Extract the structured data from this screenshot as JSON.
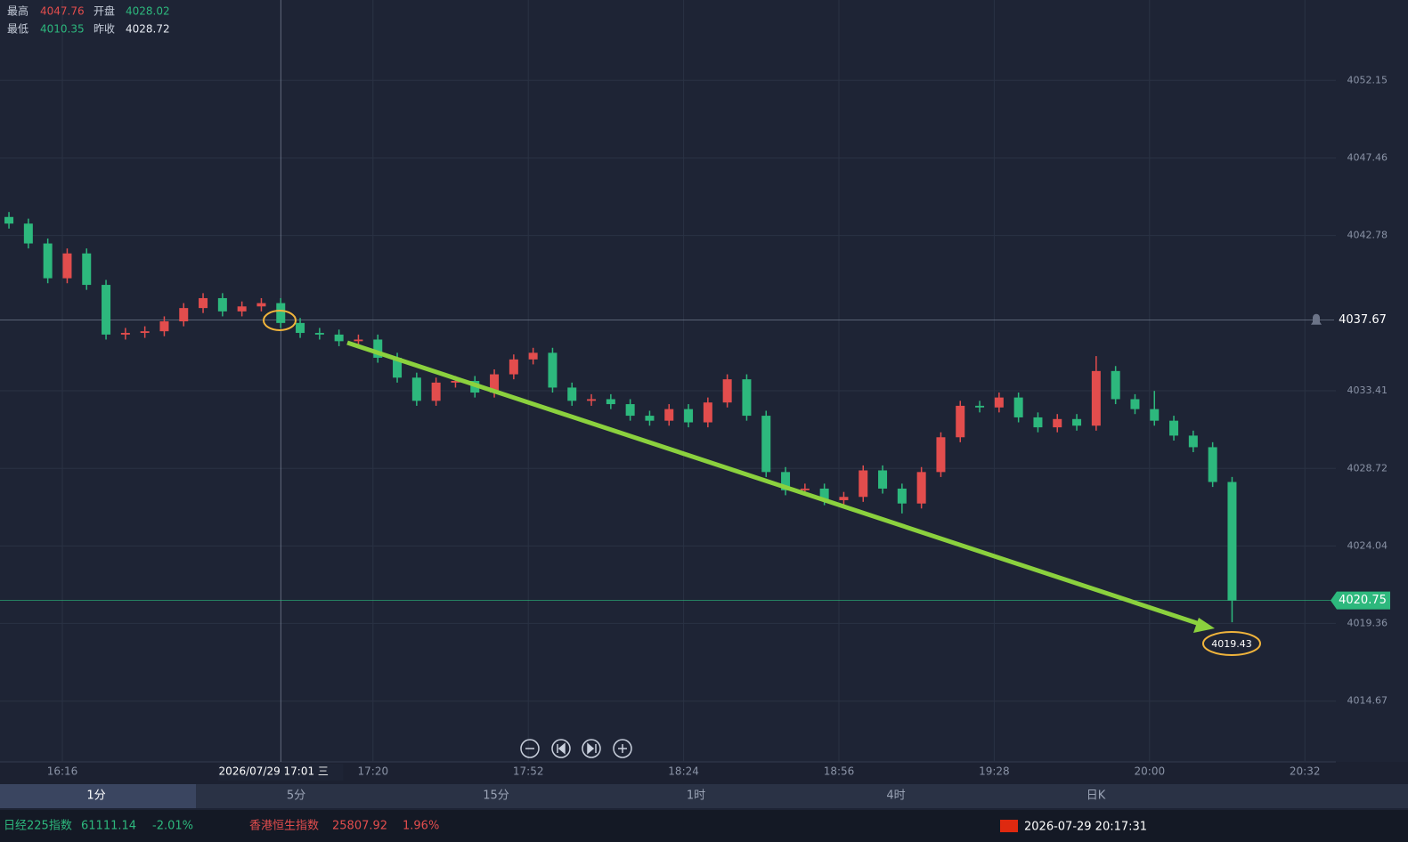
{
  "quote": {
    "high_label": "最高",
    "high": 4047.76,
    "open_label": "开盘",
    "open": 4028.02,
    "low_label": "最低",
    "low": 4010.35,
    "prev_label": "昨收",
    "prev_close": 4028.72
  },
  "chart_data": {
    "type": "candlestick",
    "x": [
      "16:05",
      "16:09",
      "16:13",
      "16:17",
      "16:21",
      "16:25",
      "16:29",
      "16:33",
      "16:37",
      "16:41",
      "16:45",
      "16:49",
      "16:53",
      "16:57",
      "17:01",
      "17:05",
      "17:09",
      "17:13",
      "17:17",
      "17:21",
      "17:25",
      "17:29",
      "17:33",
      "17:37",
      "17:41",
      "17:45",
      "17:49",
      "17:53",
      "17:57",
      "18:01",
      "18:05",
      "18:09",
      "18:13",
      "18:17",
      "18:21",
      "18:25",
      "18:29",
      "18:33",
      "18:37",
      "18:41",
      "18:45",
      "18:49",
      "18:53",
      "18:57",
      "19:01",
      "19:05",
      "19:09",
      "19:13",
      "19:17",
      "19:21",
      "19:25",
      "19:29",
      "19:33",
      "19:37",
      "19:41",
      "19:45",
      "19:49",
      "19:53",
      "19:57",
      "20:01",
      "20:05",
      "20:09",
      "20:13",
      "20:17"
    ],
    "open": [
      4043.9,
      4043.5,
      4042.3,
      4040.2,
      4041.7,
      4039.8,
      4036.8,
      4036.9,
      4037.0,
      4037.6,
      4038.4,
      4039.0,
      4038.2,
      4038.5,
      4038.7,
      4037.5,
      4036.9,
      4036.8,
      4036.4,
      4036.5,
      4035.4,
      4034.2,
      4032.8,
      4033.9,
      4034.0,
      4033.3,
      4034.4,
      4035.3,
      4035.7,
      4033.6,
      4032.8,
      4032.9,
      4032.6,
      4031.9,
      4031.6,
      4032.3,
      4031.5,
      4032.7,
      4034.1,
      4031.9,
      4028.5,
      4027.4,
      4027.5,
      4026.8,
      4027.0,
      4028.6,
      4027.5,
      4026.6,
      4028.5,
      4030.6,
      4032.5,
      4032.4,
      4033.0,
      4031.8,
      4031.2,
      4031.7,
      4031.3,
      4034.6,
      4032.9,
      4032.3,
      4031.6,
      4030.7,
      4030.0,
      4027.9
    ],
    "high": [
      4044.2,
      4043.8,
      4042.6,
      4042.0,
      4042.0,
      4040.1,
      4037.2,
      4037.3,
      4037.9,
      4038.7,
      4039.3,
      4039.3,
      4038.8,
      4039.0,
      4039.0,
      4037.8,
      4037.2,
      4037.1,
      4036.8,
      4036.8,
      4035.7,
      4034.5,
      4034.2,
      4034.3,
      4034.3,
      4034.7,
      4035.6,
      4036.0,
      4036.0,
      4033.9,
      4033.2,
      4033.2,
      4032.9,
      4032.2,
      4032.6,
      4032.6,
      4033.0,
      4034.4,
      4034.4,
      4032.2,
      4028.8,
      4027.8,
      4027.8,
      4027.3,
      4028.9,
      4028.9,
      4027.8,
      4028.8,
      4030.9,
      4032.8,
      4032.8,
      4033.3,
      4033.3,
      4032.1,
      4032.0,
      4032.0,
      4035.5,
      4034.9,
      4033.2,
      4033.4,
      4031.9,
      4031.0,
      4030.3,
      4028.2
    ],
    "low": [
      4043.2,
      4042.0,
      4039.9,
      4039.9,
      4039.5,
      4036.5,
      4036.5,
      4036.6,
      4036.7,
      4037.3,
      4038.1,
      4037.9,
      4037.9,
      4038.2,
      4037.2,
      4036.6,
      4036.5,
      4036.1,
      4036.1,
      4035.1,
      4033.9,
      4032.5,
      4032.5,
      4033.6,
      4033.0,
      4033.0,
      4034.1,
      4035.0,
      4033.3,
      4032.5,
      4032.5,
      4032.3,
      4031.6,
      4031.3,
      4031.3,
      4031.2,
      4031.2,
      4032.4,
      4031.6,
      4028.2,
      4027.1,
      4027.1,
      4026.5,
      4026.5,
      4026.7,
      4027.2,
      4026.0,
      4026.3,
      4028.2,
      4030.3,
      4032.1,
      4032.1,
      4031.5,
      4030.9,
      4030.9,
      4031.0,
      4031.0,
      4032.6,
      4032.0,
      4031.3,
      4030.4,
      4029.7,
      4027.6,
      4019.43
    ],
    "close": [
      4043.5,
      4042.3,
      4040.2,
      4041.7,
      4039.8,
      4036.8,
      4036.9,
      4037.0,
      4037.6,
      4038.4,
      4039.0,
      4038.2,
      4038.5,
      4038.7,
      4037.5,
      4036.9,
      4036.8,
      4036.4,
      4036.5,
      4035.4,
      4034.2,
      4032.8,
      4033.9,
      4034.0,
      4033.3,
      4034.4,
      4035.3,
      4035.7,
      4033.6,
      4032.8,
      4032.9,
      4032.6,
      4031.9,
      4031.6,
      4032.3,
      4031.5,
      4032.7,
      4034.1,
      4031.9,
      4028.5,
      4027.4,
      4027.5,
      4026.8,
      4027.0,
      4028.6,
      4027.5,
      4026.6,
      4028.5,
      4030.6,
      4032.5,
      4032.4,
      4033.0,
      4031.8,
      4031.2,
      4031.7,
      4031.3,
      4034.6,
      4032.9,
      4032.3,
      4031.6,
      4030.7,
      4030.0,
      4027.9,
      4020.75
    ],
    "up_color": "#e24d4d",
    "down_color": "#2db87d",
    "ylim": [
      4011.0,
      4057.0
    ],
    "yticks": [
      4052.15,
      4047.46,
      4042.78,
      4033.41,
      4028.72,
      4024.04,
      4019.36,
      4014.67
    ],
    "xticks": [
      "16:16",
      "17:20",
      "17:52",
      "18:24",
      "18:56",
      "19:28",
      "20:00",
      "20:32"
    ],
    "grid": true,
    "crosshair": {
      "time": "2026/07/29 17:01 三",
      "price": 4037.67
    },
    "last_price": 4020.75,
    "low_annotation": 4019.43
  },
  "toolbar": {
    "periods": [
      "1分",
      "5分",
      "15分",
      "1时",
      "4时",
      "日K"
    ]
  },
  "status": {
    "tickers": [
      {
        "name": "日经225指数",
        "price": "61111.14",
        "change": "-2.01%"
      },
      {
        "name": "香港恒生指数",
        "price": "25807.92",
        "change": "1.96%"
      }
    ],
    "clock": "2026-07-29 20:17:31"
  }
}
